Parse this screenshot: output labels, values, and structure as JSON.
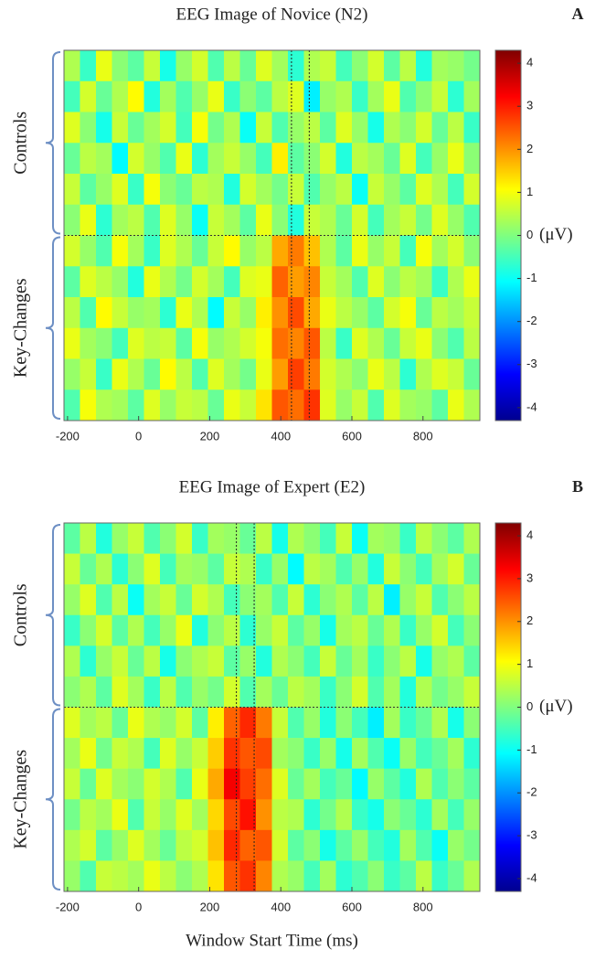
{
  "chart_data": [
    {
      "type": "heatmap",
      "title": "EEG Image of Novice (N2)",
      "panel_label": "A",
      "colormap": "jet",
      "xbins": [
        -210,
        -165,
        -120,
        -75,
        -30,
        15,
        60,
        105,
        150,
        195,
        240,
        285,
        330,
        375,
        420,
        465,
        510,
        555,
        600,
        645,
        690,
        735,
        780,
        825,
        870,
        915,
        960
      ],
      "xlim": [
        -210,
        960
      ],
      "xticks": [
        -200,
        0,
        200,
        400,
        600,
        800
      ],
      "markers_x": [
        430,
        480
      ],
      "zlim": [
        -4.3,
        4.3
      ],
      "zticks": [
        4,
        3,
        2,
        1,
        0,
        -1,
        -2,
        -3,
        -4
      ],
      "zlabel": "(μV)",
      "groups": [
        {
          "name": "Controls",
          "values": [
            [
              0.4,
              -0.6,
              0.9,
              0.1,
              -0.3,
              0.6,
              -0.9,
              0.2,
              0.7,
              -0.4,
              0.5,
              -0.2,
              0.8,
              0.3,
              -0.7,
              0.4,
              0.6,
              -0.5,
              0.1,
              0.7,
              -0.3,
              0.5,
              -0.8,
              0.3,
              0.2,
              -0.1
            ],
            [
              -0.5,
              0.7,
              -0.2,
              0.4,
              1.1,
              -0.8,
              0.3,
              -0.4,
              0.2,
              0.9,
              -0.6,
              0.1,
              -0.3,
              0.5,
              0.8,
              -1.2,
              0.2,
              0.4,
              -0.6,
              0.3,
              0.9,
              -0.4,
              0.1,
              0.6,
              -0.7,
              0.3
            ],
            [
              0.8,
              0.1,
              -0.9,
              0.6,
              -0.2,
              0.3,
              0.7,
              -0.5,
              1.0,
              -0.1,
              0.4,
              -1.0,
              0.6,
              -0.4,
              0.2,
              0.5,
              -0.3,
              0.8,
              0.2,
              -0.9,
              0.4,
              0.1,
              0.7,
              -0.2,
              0.5,
              -0.6
            ],
            [
              -0.2,
              0.5,
              0.3,
              -1.1,
              0.7,
              0.2,
              -0.4,
              0.9,
              -0.7,
              0.3,
              0.6,
              0.2,
              -0.5,
              1.2,
              -0.3,
              0.1,
              0.7,
              -0.8,
              0.5,
              0.3,
              -0.2,
              0.8,
              -0.5,
              0.2,
              0.9,
              0.1
            ],
            [
              0.6,
              -0.3,
              0.2,
              0.8,
              -0.6,
              1.0,
              0.1,
              -0.2,
              0.5,
              0.4,
              -0.8,
              0.7,
              0.3,
              -0.1,
              0.6,
              -0.4,
              0.2,
              0.5,
              -1.0,
              0.6,
              0.2,
              -0.3,
              0.8,
              0.4,
              -0.5,
              0.7
            ],
            [
              0.1,
              0.9,
              -0.7,
              0.3,
              0.5,
              -0.4,
              0.8,
              0.2,
              -1.0,
              0.6,
              0.3,
              -0.3,
              0.9,
              0.1,
              -0.8,
              0.6,
              0.4,
              -0.2,
              0.7,
              -0.5,
              0.3,
              0.6,
              -0.1,
              0.8,
              0.2,
              -0.4
            ]
          ]
        },
        {
          "name": "Key-Changes",
          "values": [
            [
              0.7,
              0.2,
              -0.4,
              1.0,
              0.3,
              -0.6,
              0.8,
              0.4,
              -0.2,
              0.6,
              1.1,
              0.2,
              0.5,
              1.8,
              2.2,
              1.6,
              0.4,
              -0.3,
              0.9,
              0.2,
              0.6,
              -0.5,
              1.0,
              0.3,
              0.7,
              0.1
            ],
            [
              -0.3,
              0.8,
              0.5,
              0.2,
              -0.8,
              0.9,
              0.4,
              -0.1,
              0.7,
              0.3,
              -0.5,
              0.8,
              0.9,
              2.4,
              1.9,
              2.1,
              0.6,
              0.3,
              -0.4,
              0.8,
              0.1,
              0.5,
              0.3,
              -0.6,
              0.4,
              0.9
            ],
            [
              0.5,
              -0.4,
              1.1,
              0.6,
              0.2,
              0.3,
              -0.7,
              0.9,
              0.4,
              -1.1,
              0.6,
              0.2,
              1.2,
              2.0,
              2.6,
              1.8,
              0.9,
              0.5,
              0.2,
              -0.3,
              0.7,
              1.0,
              -0.2,
              0.5,
              0.3,
              0.6
            ],
            [
              0.9,
              0.3,
              0.1,
              -0.5,
              0.8,
              0.5,
              0.6,
              -0.3,
              1.0,
              0.2,
              0.4,
              0.7,
              1.0,
              2.3,
              2.1,
              2.5,
              0.5,
              -0.6,
              0.8,
              0.4,
              -0.2,
              0.6,
              0.9,
              0.1,
              -0.4,
              0.5
            ],
            [
              0.2,
              0.6,
              -0.6,
              0.9,
              0.4,
              -0.2,
              1.1,
              0.5,
              -0.4,
              0.8,
              0.3,
              -0.1,
              0.9,
              1.9,
              2.7,
              2.2,
              0.7,
              0.4,
              0.1,
              0.9,
              0.5,
              -0.7,
              0.4,
              0.8,
              0.6,
              -0.2
            ],
            [
              -0.4,
              1.0,
              0.4,
              0.3,
              -0.3,
              0.8,
              0.2,
              0.6,
              0.5,
              -0.2,
              0.9,
              0.6,
              1.3,
              2.5,
              2.3,
              2.8,
              0.8,
              0.2,
              0.6,
              -0.4,
              0.8,
              0.3,
              0.2,
              -0.3,
              0.9,
              0.4
            ]
          ]
        }
      ]
    },
    {
      "type": "heatmap",
      "title": "EEG Image of Expert (E2)",
      "panel_label": "B",
      "colormap": "jet",
      "x_label": "Window Start Time (ms)",
      "xbins": [
        -210,
        -165,
        -120,
        -75,
        -30,
        15,
        60,
        105,
        150,
        195,
        240,
        285,
        330,
        375,
        420,
        465,
        510,
        555,
        600,
        645,
        690,
        735,
        780,
        825,
        870,
        915,
        960
      ],
      "xlim": [
        -210,
        960
      ],
      "xticks": [
        -200,
        0,
        200,
        400,
        600,
        800
      ],
      "markers_x": [
        275,
        325
      ],
      "zlim": [
        -4.3,
        4.3
      ],
      "zticks": [
        4,
        3,
        2,
        1,
        0,
        -1,
        -2,
        -3,
        -4
      ],
      "zlabel": "(μV)",
      "groups": [
        {
          "name": "Controls",
          "values": [
            [
              -0.3,
              0.5,
              -0.8,
              0.2,
              0.6,
              -0.4,
              0.1,
              0.7,
              -0.6,
              0.3,
              0.2,
              -0.2,
              0.5,
              -0.9,
              0.4,
              0.1,
              -0.5,
              0.6,
              -1.0,
              0.3,
              0.2,
              -0.6,
              0.5,
              0.1,
              -0.3,
              0.4
            ],
            [
              0.6,
              -0.2,
              0.4,
              -0.7,
              0.1,
              0.8,
              -0.5,
              0.3,
              0.2,
              -0.3,
              0.6,
              0.4,
              -0.6,
              0.2,
              -1.1,
              0.5,
              0.3,
              -0.4,
              0.2,
              -0.8,
              0.6,
              0.1,
              -0.5,
              0.3,
              0.7,
              -0.2
            ],
            [
              0.2,
              0.8,
              -0.4,
              0.5,
              -1.0,
              0.3,
              0.6,
              -0.2,
              0.7,
              0.4,
              -0.5,
              0.1,
              0.3,
              -0.4,
              0.6,
              -0.7,
              0.1,
              0.4,
              -0.3,
              0.5,
              -1.2,
              0.2,
              0.6,
              -0.4,
              0.1,
              0.5
            ],
            [
              -0.6,
              0.1,
              0.7,
              -0.3,
              0.4,
              -0.5,
              0.2,
              0.9,
              -0.8,
              0.1,
              0.5,
              -0.7,
              0.2,
              0.6,
              -0.3,
              0.2,
              -0.9,
              0.3,
              0.5,
              -0.2,
              0.4,
              -0.6,
              0.2,
              0.7,
              -0.5,
              0.1
            ],
            [
              0.4,
              -0.7,
              0.2,
              0.6,
              -0.2,
              0.5,
              -0.9,
              0.1,
              0.4,
              0.6,
              -0.3,
              0.2,
              -0.8,
              0.4,
              0.1,
              -0.5,
              0.6,
              -0.2,
              0.3,
              -0.6,
              0.1,
              0.5,
              -0.9,
              0.2,
              0.4,
              -0.3
            ],
            [
              0.1,
              0.4,
              -0.3,
              0.8,
              0.3,
              -0.6,
              0.5,
              -0.4,
              0.2,
              -0.1,
              0.7,
              -0.4,
              0.3,
              -0.2,
              0.5,
              0.3,
              -0.6,
              0.1,
              0.7,
              -0.4,
              0.3,
              -0.8,
              0.4,
              -0.1,
              0.2,
              0.6
            ]
          ]
        },
        {
          "name": "Key-Changes",
          "values": [
            [
              0.8,
              0.3,
              0.5,
              -0.2,
              0.9,
              0.4,
              0.2,
              0.7,
              -0.3,
              1.2,
              2.4,
              2.9,
              2.2,
              0.6,
              -0.4,
              0.2,
              -0.8,
              0.1,
              -0.5,
              -1.2,
              0.3,
              -0.6,
              -0.2,
              0.4,
              -0.9,
              0.1
            ],
            [
              0.3,
              0.9,
              -0.1,
              0.6,
              0.4,
              -0.5,
              0.8,
              0.2,
              0.6,
              1.5,
              2.8,
              2.5,
              2.6,
              0.3,
              0.1,
              -0.6,
              0.2,
              -0.9,
              0.3,
              -0.4,
              -1.0,
              0.2,
              -0.5,
              -0.2,
              0.3,
              -0.7
            ],
            [
              0.6,
              -0.2,
              0.8,
              0.3,
              0.1,
              0.7,
              0.4,
              -0.4,
              0.9,
              1.8,
              3.3,
              2.7,
              2.3,
              0.8,
              -0.2,
              0.3,
              -0.5,
              -0.2,
              -1.1,
              0.2,
              -0.3,
              -0.8,
              0.4,
              -0.4,
              0.1,
              -0.3
            ],
            [
              -0.1,
              0.5,
              0.3,
              0.9,
              -0.4,
              0.6,
              0.2,
              0.8,
              0.3,
              1.4,
              2.6,
              3.1,
              2.0,
              0.5,
              0.4,
              -0.7,
              -0.1,
              0.4,
              -0.6,
              -0.9,
              0.1,
              -0.2,
              -0.7,
              0.3,
              -0.5,
              0.2
            ],
            [
              0.4,
              0.7,
              -0.3,
              0.2,
              0.8,
              0.3,
              -0.2,
              0.5,
              0.7,
              1.6,
              2.9,
              2.4,
              2.5,
              0.7,
              -0.3,
              0.1,
              -0.9,
              -0.3,
              0.2,
              -0.5,
              -0.8,
              0.3,
              -0.4,
              -1.0,
              0.2,
              -0.1
            ],
            [
              0.2,
              -0.4,
              0.6,
              0.5,
              0.3,
              0.9,
              0.5,
              0.1,
              0.4,
              1.3,
              2.5,
              2.8,
              2.1,
              0.4,
              0.2,
              -0.5,
              0.3,
              -0.7,
              -0.4,
              0.1,
              -0.6,
              -0.3,
              0.5,
              -0.6,
              -0.2,
              0.4
            ]
          ]
        }
      ]
    }
  ]
}
